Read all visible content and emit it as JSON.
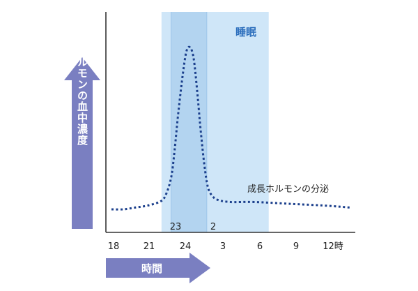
{
  "chart_data": {
    "type": "line",
    "title": "",
    "ylabel": "成長ホルモンの血中濃度",
    "xlabel": "時間",
    "x_ticks": [
      "18",
      "21",
      "24",
      "3",
      "6",
      "9",
      "12時"
    ],
    "x_range": [
      18,
      38
    ],
    "sleep_period": {
      "label": "睡眠",
      "start": 22.2,
      "end": 31.2
    },
    "deep_sleep_period": {
      "start": 23,
      "end": 26
    },
    "deep_sleep_labels": {
      "start": "23",
      "end": "2"
    },
    "grid": false,
    "series": [
      {
        "name": "成長ホルモンの分泌",
        "x": [
          18,
          19,
          20,
          21,
          22,
          22.5,
          23,
          23.3,
          23.6,
          24,
          24.3,
          24.6,
          24.9,
          25.2,
          25.5,
          25.8,
          26.1,
          26.5,
          27,
          28,
          30,
          33,
          36,
          38
        ],
        "y": [
          0.08,
          0.08,
          0.09,
          0.1,
          0.12,
          0.15,
          0.25,
          0.4,
          0.6,
          0.82,
          0.94,
          0.96,
          0.9,
          0.72,
          0.5,
          0.32,
          0.2,
          0.15,
          0.13,
          0.12,
          0.12,
          0.11,
          0.1,
          0.09
        ]
      }
    ],
    "colors": {
      "sleep_band": "#cfe6f8",
      "deep_band": "#b3d4f0",
      "deep_band_edge": "#9ec6ea",
      "line": "#1b3f8c",
      "arrow": "#7a7fc1",
      "sleep_label": "#2d6fbd",
      "axis": "#333333",
      "text": "#222222"
    }
  }
}
